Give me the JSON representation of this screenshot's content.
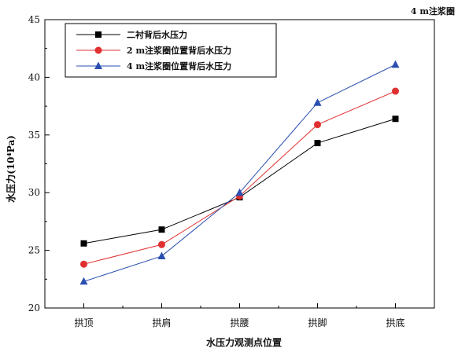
{
  "chart_data": {
    "type": "line",
    "corner_note": "4 m注浆圈",
    "xlabel": "水压力观测点位置",
    "ylabel": "水压力(10⁴Pa)",
    "ylim": [
      20,
      45
    ],
    "yticks": [
      20,
      25,
      30,
      35,
      40,
      45
    ],
    "grid": false,
    "legend_position": "top-left",
    "categories": [
      "拱顶",
      "拱肩",
      "拱腰",
      "拱脚",
      "拱底"
    ],
    "series": [
      {
        "name": "二衬背后水压力",
        "values": [
          25.6,
          26.8,
          29.6,
          34.3,
          36.4
        ],
        "color": "#000000",
        "marker": "square"
      },
      {
        "name": "2 m注浆圈位置背后水压力",
        "values": [
          23.8,
          25.5,
          29.7,
          35.9,
          38.8
        ],
        "color": "#e03030",
        "marker": "circle"
      },
      {
        "name": "4 m注浆圈位置背后水压力",
        "values": [
          22.3,
          24.5,
          30.0,
          37.8,
          41.1
        ],
        "color": "#2a4fb0",
        "marker": "triangle"
      }
    ]
  }
}
